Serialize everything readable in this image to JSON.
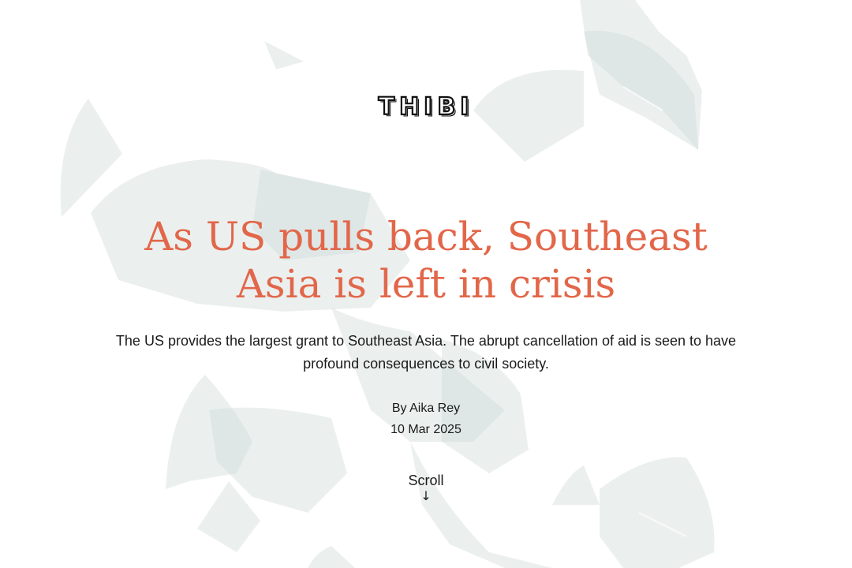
{
  "brand": {
    "logo_text": "THIBI"
  },
  "article": {
    "headline": "As US pulls back, Southeast Asia is left in crisis",
    "dek": "The US provides the largest grant to Southeast Asia. The abrupt cancellation of aid is seen to have profound consequences to civil society.",
    "byline": "By Aika Rey",
    "date": "10 Mar 2025"
  },
  "scroll_hint": {
    "label": "Scroll",
    "arrow": "↓"
  },
  "colors": {
    "headline": "#e2674a",
    "text": "#1a1a1a",
    "background": "#ffffff",
    "shapes": "#cfdcda"
  }
}
